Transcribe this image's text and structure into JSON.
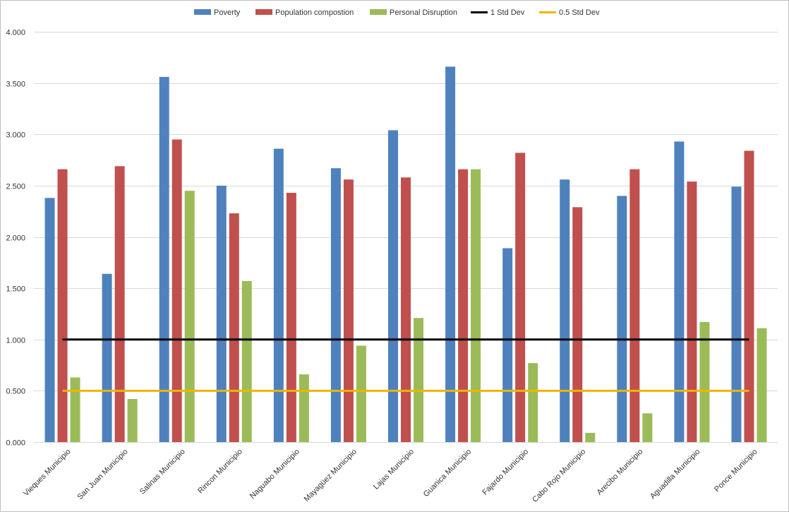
{
  "chart_data": {
    "type": "bar",
    "categories": [
      "Vieques Municipio",
      "San Juan Municipio",
      "Salinas Municipio",
      "Rincon Municipio",
      "Naguabo Municipio",
      "Mayagüez Municipio",
      "Lajas Municipio",
      "Guanica Municipio",
      "Fajardo Municipio",
      "Cabo Rojo Municipio",
      "Arecibo Municipio",
      "Aguadilla Municipio",
      "Ponce Municipio"
    ],
    "series": [
      {
        "name": "Poverty",
        "color": "#4f81bd",
        "values": [
          2.38,
          1.64,
          3.56,
          2.5,
          2.86,
          2.67,
          3.04,
          3.66,
          1.89,
          2.56,
          2.4,
          2.93,
          2.49
        ]
      },
      {
        "name": "Population compostion",
        "color": "#c0504d",
        "values": [
          2.66,
          2.69,
          2.95,
          2.23,
          2.43,
          2.56,
          2.58,
          2.66,
          2.82,
          2.29,
          2.66,
          2.54,
          2.84
        ]
      },
      {
        "name": "Personal Disruption",
        "color": "#9bbb59",
        "values": [
          0.63,
          0.42,
          2.45,
          1.57,
          0.66,
          0.94,
          1.21,
          2.66,
          0.77,
          0.09,
          0.28,
          1.17,
          1.11
        ]
      }
    ],
    "reference_lines": [
      {
        "name": "1 Std Dev",
        "value": 1.0,
        "color": "#000000"
      },
      {
        "name": "0.5 Std Dev",
        "value": 0.5,
        "color": "#f0b400"
      }
    ],
    "ylim": [
      0,
      4
    ],
    "yticks": [
      "0.000",
      "0.500",
      "1.000",
      "1.500",
      "2.000",
      "2.500",
      "3.000",
      "3.500",
      "4.000"
    ],
    "ytick_values": [
      0,
      0.5,
      1,
      1.5,
      2,
      2.5,
      3,
      3.5,
      4
    ],
    "grid": true,
    "legend_position": "top",
    "title": "",
    "xlabel": "",
    "ylabel": ""
  }
}
